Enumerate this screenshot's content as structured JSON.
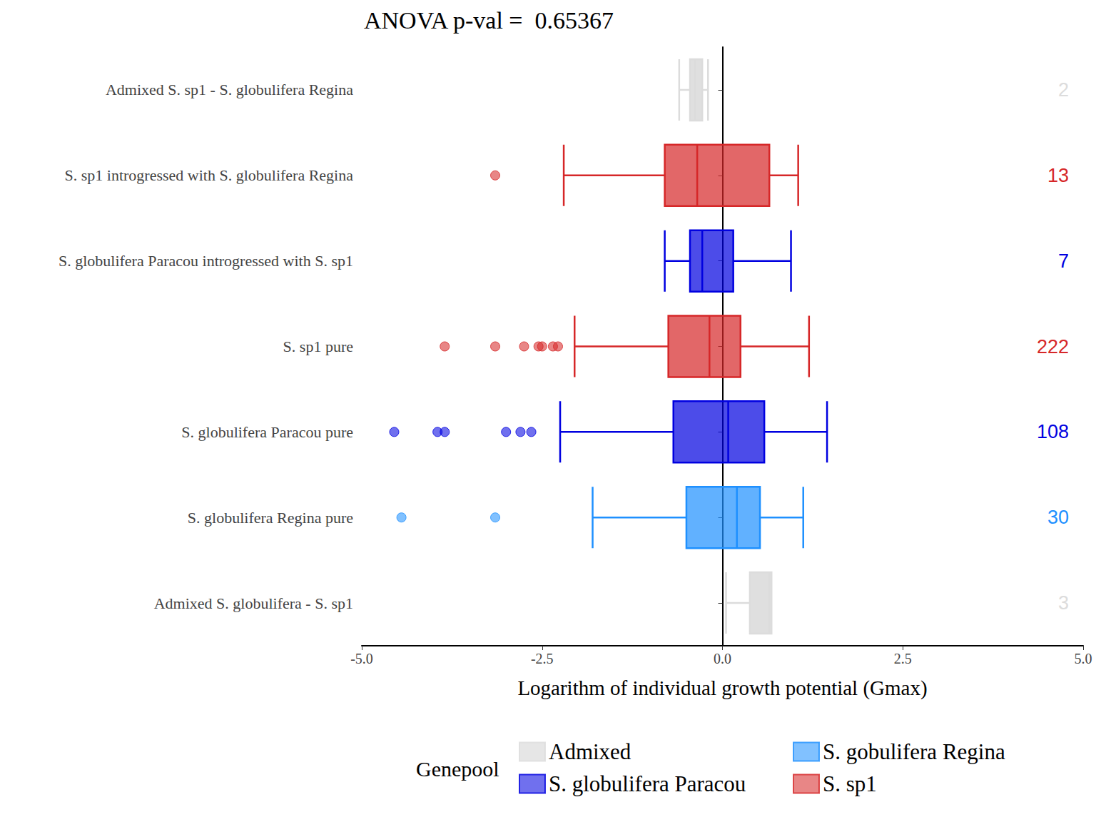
{
  "chart_data": {
    "type": "boxplot",
    "orientation": "horizontal",
    "title": "ANOVA p-val =  0.65367",
    "xlabel": "Logarithm of individual growth potential (Gmax)",
    "legend_title": "Genepool",
    "legend": "bottom",
    "grid": false,
    "categories": [
      "Admixed S. sp1 - S. globulifera Regina",
      "S. sp1 introgressed with S. globulifera Regina",
      "S. globulifera Paracou introgressed with S. sp1",
      "S. sp1 pure",
      "S. globulifera Paracou pure",
      "S. globulifera Regina pure",
      "Admixed S. globulifera - S. sp1"
    ],
    "genepool": [
      "Admixed",
      "S. sp1",
      "S. globulifera Paracou",
      "S. sp1",
      "S. globulifera Paracou",
      "S. gobulifera Regina",
      "Admixed"
    ],
    "boxes": [
      [
        -0.6,
        -0.45,
        -0.38,
        -0.28,
        -0.2
      ],
      [
        -2.2,
        -0.8,
        -0.35,
        0.65,
        1.05
      ],
      [
        -0.8,
        -0.45,
        -0.28,
        0.15,
        0.95
      ],
      [
        -2.05,
        -0.75,
        -0.18,
        0.25,
        1.2
      ],
      [
        -2.25,
        -0.68,
        0.08,
        0.58,
        1.45
      ],
      [
        -1.8,
        -0.5,
        0.2,
        0.52,
        1.12
      ],
      [
        0.05,
        0.38,
        0.65,
        0.68,
        0.68
      ]
    ],
    "outliers": [
      [],
      [
        -3.15
      ],
      [],
      [
        -3.85,
        -3.15,
        -2.75,
        -2.55,
        -2.5,
        -2.35,
        -2.28
      ],
      [
        -4.55,
        -3.95,
        -3.85,
        -3.0,
        -2.8,
        -2.65
      ],
      [
        -4.45,
        -3.15
      ],
      []
    ],
    "counts": [
      2,
      13,
      7,
      222,
      108,
      30,
      3
    ],
    "series": [
      {
        "name": "Admixed",
        "color": "#dcdcdc"
      },
      {
        "name": "S. globulifera Paracou",
        "color": "#0000e0"
      },
      {
        "name": "S. gobulifera Regina",
        "color": "#1e90ff"
      },
      {
        "name": "S. sp1",
        "color": "#d62728"
      }
    ],
    "xlim": [
      -5,
      5
    ],
    "xticks": [
      {
        "value": -5,
        "label": "-5.0"
      },
      {
        "value": -2.5,
        "label": "-2.5"
      },
      {
        "value": 0,
        "label": "0.0"
      },
      {
        "value": 2.5,
        "label": "2.5"
      },
      {
        "value": 5,
        "label": "5.0"
      }
    ]
  }
}
